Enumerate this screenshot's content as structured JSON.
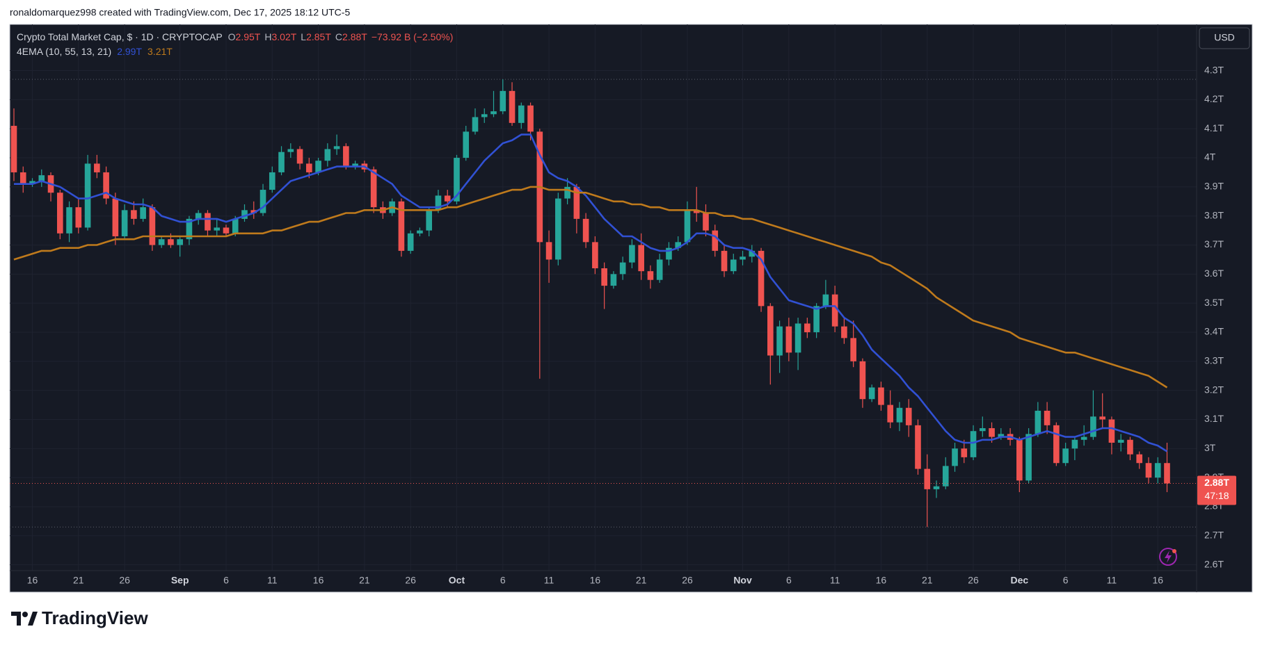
{
  "header": {
    "attribution": "ronaldomarquez998 created with TradingView.com, Dec 17, 2025 18:12 UTC-5",
    "symbol": "Crypto Total Market Cap, $ · 1D · CRYPTOCAP",
    "ohlc": [
      {
        "label": "O",
        "value": "2.95T"
      },
      {
        "label": "H",
        "value": "3.02T"
      },
      {
        "label": "L",
        "value": "2.85T"
      },
      {
        "label": "C",
        "value": "2.88T"
      }
    ],
    "change": "−73.92 B (−2.50%)",
    "indicator": "4EMA (10, 55, 13, 21)",
    "indicator_values": [
      "2.99T",
      "3.21T"
    ],
    "currency": "USD",
    "price_tag": "2.88T",
    "countdown": "47:18",
    "brand": "TradingView"
  },
  "chart_data": {
    "type": "candlestick",
    "categories": [
      null,
      null,
      "16",
      null,
      null,
      null,
      null,
      "21",
      null,
      null,
      null,
      null,
      "26",
      null,
      null,
      null,
      null,
      null,
      "Sep",
      null,
      null,
      null,
      null,
      "6",
      null,
      null,
      null,
      null,
      "11",
      null,
      null,
      null,
      null,
      "16",
      null,
      null,
      null,
      null,
      "21",
      null,
      null,
      null,
      null,
      "26",
      null,
      null,
      null,
      null,
      "Oct",
      null,
      null,
      null,
      null,
      "6",
      null,
      null,
      null,
      null,
      "11",
      null,
      null,
      null,
      null,
      "16",
      null,
      null,
      null,
      null,
      "21",
      null,
      null,
      null,
      null,
      "26",
      null,
      null,
      null,
      null,
      null,
      "Nov",
      null,
      null,
      null,
      null,
      "6",
      null,
      null,
      null,
      null,
      "11",
      null,
      null,
      null,
      null,
      "16",
      null,
      null,
      null,
      null,
      "21",
      null,
      null,
      null,
      null,
      "26",
      null,
      null,
      null,
      null,
      "Dec",
      null,
      null,
      null,
      null,
      "6",
      null,
      null,
      null,
      null,
      "11",
      null,
      null,
      null,
      null,
      "16",
      null
    ],
    "open": [
      4.11,
      3.95,
      3.91,
      3.92,
      3.94,
      3.88,
      3.74,
      3.83,
      3.76,
      3.98,
      3.95,
      3.86,
      3.73,
      3.82,
      3.79,
      3.83,
      3.7,
      3.72,
      3.7,
      3.72,
      3.79,
      3.81,
      3.75,
      3.76,
      3.74,
      3.79,
      3.82,
      3.81,
      3.89,
      3.95,
      4.02,
      4.03,
      3.98,
      3.95,
      3.99,
      4.03,
      4.04,
      3.97,
      3.98,
      3.96,
      3.83,
      3.81,
      3.85,
      3.68,
      3.74,
      3.75,
      3.82,
      3.87,
      3.85,
      4.0,
      4.09,
      4.14,
      4.15,
      4.16,
      4.23,
      4.12,
      4.18,
      4.09,
      3.71,
      3.65,
      3.86,
      3.9,
      3.79,
      3.71,
      3.62,
      3.56,
      3.6,
      3.64,
      3.7,
      3.61,
      3.58,
      3.65,
      3.69,
      3.71,
      3.82,
      3.81,
      3.75,
      3.68,
      3.61,
      3.65,
      3.66,
      3.68,
      3.49,
      3.32,
      3.42,
      3.33,
      3.43,
      3.4,
      3.49,
      3.53,
      3.42,
      3.38,
      3.3,
      3.17,
      3.21,
      3.15,
      3.09,
      3.14,
      3.08,
      2.93,
      2.86,
      2.87,
      2.94,
      3.0,
      2.97,
      3.06,
      3.07,
      3.04,
      3.05,
      3.03,
      2.89,
      3.05,
      3.13,
      3.08,
      2.95,
      3.0,
      3.03,
      3.04,
      3.11,
      3.1,
      3.02,
      3.03,
      2.98,
      2.95,
      2.9,
      2.95
    ],
    "high": [
      4.17,
      3.97,
      3.93,
      3.96,
      3.95,
      3.89,
      3.85,
      3.86,
      4.01,
      4.01,
      3.97,
      3.88,
      3.84,
      3.85,
      3.86,
      3.84,
      3.73,
      3.74,
      3.73,
      3.8,
      3.82,
      3.82,
      3.79,
      3.77,
      3.8,
      3.84,
      3.85,
      3.91,
      3.97,
      4.04,
      4.05,
      4.04,
      4.0,
      4.0,
      4.05,
      4.08,
      4.05,
      3.99,
      3.99,
      3.97,
      3.85,
      3.86,
      3.86,
      3.75,
      3.76,
      3.83,
      3.89,
      3.89,
      4.01,
      4.11,
      4.17,
      4.17,
      4.23,
      4.27,
      4.26,
      4.19,
      4.19,
      4.1,
      3.75,
      3.88,
      3.93,
      3.91,
      3.81,
      3.73,
      3.64,
      3.61,
      3.66,
      3.72,
      3.74,
      3.63,
      3.67,
      3.71,
      3.73,
      3.85,
      3.9,
      3.84,
      3.77,
      3.7,
      3.67,
      3.68,
      3.7,
      3.69,
      3.5,
      3.44,
      3.45,
      3.45,
      3.45,
      3.5,
      3.58,
      3.56,
      3.45,
      3.44,
      3.31,
      3.22,
      3.23,
      3.2,
      3.16,
      3.17,
      3.1,
      2.98,
      2.89,
      2.97,
      3.02,
      3.03,
      3.08,
      3.11,
      3.09,
      3.07,
      3.07,
      3.04,
      3.07,
      3.16,
      3.16,
      3.09,
      3.02,
      3.04,
      3.08,
      3.2,
      3.19,
      3.11,
      3.05,
      3.04,
      2.99,
      2.97,
      2.97,
      3.02
    ],
    "low": [
      3.92,
      3.88,
      3.9,
      3.9,
      3.85,
      3.72,
      3.71,
      3.74,
      3.75,
      3.93,
      3.84,
      3.7,
      3.72,
      3.77,
      3.78,
      3.68,
      3.69,
      3.69,
      3.66,
      3.7,
      3.77,
      3.73,
      3.73,
      3.73,
      3.73,
      3.78,
      3.79,
      3.8,
      3.88,
      3.94,
      4.0,
      3.96,
      3.93,
      3.94,
      3.97,
      4.01,
      3.96,
      3.96,
      3.95,
      3.81,
      3.79,
      3.8,
      3.66,
      3.67,
      3.73,
      3.73,
      3.81,
      3.83,
      3.84,
      3.99,
      4.08,
      4.12,
      4.14,
      4.15,
      4.11,
      4.1,
      4.06,
      3.24,
      3.57,
      3.63,
      3.84,
      3.74,
      3.69,
      3.6,
      3.48,
      3.55,
      3.58,
      3.62,
      3.58,
      3.55,
      3.57,
      3.63,
      3.68,
      3.7,
      3.78,
      3.73,
      3.66,
      3.59,
      3.6,
      3.63,
      3.64,
      3.47,
      3.22,
      3.26,
      3.3,
      3.27,
      3.38,
      3.38,
      3.48,
      3.4,
      3.36,
      3.28,
      3.14,
      3.16,
      3.13,
      3.07,
      3.06,
      3.04,
      2.91,
      2.73,
      2.83,
      2.86,
      2.92,
      2.95,
      2.96,
      3.04,
      3.02,
      3.03,
      3.01,
      2.85,
      2.88,
      3.04,
      3.05,
      2.94,
      2.94,
      2.96,
      3.01,
      3.03,
      3.07,
      2.98,
      2.99,
      2.96,
      2.93,
      2.88,
      2.88,
      2.85
    ],
    "close": [
      3.95,
      3.91,
      3.92,
      3.94,
      3.88,
      3.74,
      3.83,
      3.76,
      3.98,
      3.95,
      3.86,
      3.73,
      3.82,
      3.79,
      3.83,
      3.7,
      3.72,
      3.7,
      3.72,
      3.79,
      3.81,
      3.75,
      3.76,
      3.74,
      3.79,
      3.82,
      3.81,
      3.89,
      3.95,
      4.02,
      4.03,
      3.98,
      3.95,
      3.99,
      4.03,
      4.04,
      3.97,
      3.98,
      3.96,
      3.83,
      3.81,
      3.85,
      3.68,
      3.74,
      3.75,
      3.82,
      3.87,
      3.85,
      4.0,
      4.09,
      4.14,
      4.15,
      4.16,
      4.23,
      4.12,
      4.18,
      4.09,
      3.71,
      3.65,
      3.86,
      3.9,
      3.79,
      3.71,
      3.62,
      3.56,
      3.6,
      3.64,
      3.7,
      3.61,
      3.58,
      3.65,
      3.69,
      3.71,
      3.82,
      3.81,
      3.75,
      3.68,
      3.61,
      3.65,
      3.66,
      3.68,
      3.49,
      3.32,
      3.42,
      3.33,
      3.43,
      3.4,
      3.49,
      3.53,
      3.42,
      3.38,
      3.3,
      3.17,
      3.21,
      3.15,
      3.09,
      3.14,
      3.08,
      2.93,
      2.86,
      2.87,
      2.94,
      3.0,
      2.97,
      3.06,
      3.07,
      3.04,
      3.05,
      3.03,
      2.89,
      3.05,
      3.13,
      3.08,
      2.95,
      3.0,
      3.03,
      3.04,
      3.11,
      3.1,
      3.02,
      3.03,
      2.98,
      2.95,
      2.9,
      2.95,
      2.88
    ],
    "up_color": "#26a69a",
    "down_color": "#ef5350",
    "series": [
      {
        "color": "#3151d4",
        "values": [
          3.91,
          3.91,
          3.91,
          3.92,
          3.91,
          3.9,
          3.88,
          3.86,
          3.86,
          3.87,
          3.88,
          3.86,
          3.85,
          3.84,
          3.84,
          3.83,
          3.8,
          3.79,
          3.78,
          3.78,
          3.79,
          3.79,
          3.79,
          3.78,
          3.79,
          3.8,
          3.81,
          3.83,
          3.86,
          3.89,
          3.92,
          3.93,
          3.94,
          3.95,
          3.96,
          3.97,
          3.97,
          3.97,
          3.97,
          3.95,
          3.93,
          3.91,
          3.87,
          3.85,
          3.83,
          3.83,
          3.83,
          3.84,
          3.87,
          3.91,
          3.95,
          3.99,
          4.02,
          4.05,
          4.06,
          4.08,
          4.08,
          4.01,
          3.95,
          3.93,
          3.92,
          3.9,
          3.87,
          3.83,
          3.79,
          3.76,
          3.73,
          3.73,
          3.71,
          3.69,
          3.68,
          3.68,
          3.69,
          3.71,
          3.74,
          3.74,
          3.73,
          3.7,
          3.69,
          3.69,
          3.68,
          3.65,
          3.59,
          3.55,
          3.51,
          3.5,
          3.49,
          3.48,
          3.49,
          3.49,
          3.45,
          3.43,
          3.39,
          3.34,
          3.31,
          3.28,
          3.25,
          3.21,
          3.18,
          3.14,
          3.1,
          3.06,
          3.03,
          3.02,
          3.02,
          3.03,
          3.03,
          3.04,
          3.04,
          3.03,
          3.04,
          3.05,
          3.06,
          3.05,
          3.04,
          3.04,
          3.05,
          3.06,
          3.07,
          3.07,
          3.06,
          3.05,
          3.04,
          3.02,
          3.01,
          2.99
        ]
      },
      {
        "color": "#bf7a1c",
        "values": [
          3.65,
          3.66,
          3.67,
          3.68,
          3.68,
          3.69,
          3.69,
          3.69,
          3.7,
          3.7,
          3.71,
          3.72,
          3.72,
          3.72,
          3.73,
          3.73,
          3.73,
          3.73,
          3.73,
          3.73,
          3.73,
          3.73,
          3.73,
          3.73,
          3.74,
          3.74,
          3.74,
          3.74,
          3.75,
          3.75,
          3.76,
          3.77,
          3.78,
          3.78,
          3.79,
          3.8,
          3.81,
          3.81,
          3.82,
          3.82,
          3.82,
          3.83,
          3.82,
          3.82,
          3.82,
          3.82,
          3.82,
          3.83,
          3.83,
          3.84,
          3.85,
          3.86,
          3.87,
          3.88,
          3.89,
          3.89,
          3.9,
          3.9,
          3.89,
          3.89,
          3.89,
          3.88,
          3.88,
          3.87,
          3.86,
          3.85,
          3.85,
          3.84,
          3.84,
          3.83,
          3.83,
          3.82,
          3.82,
          3.82,
          3.82,
          3.81,
          3.81,
          3.8,
          3.8,
          3.79,
          3.79,
          3.78,
          3.77,
          3.76,
          3.75,
          3.74,
          3.73,
          3.72,
          3.71,
          3.7,
          3.69,
          3.68,
          3.67,
          3.66,
          3.64,
          3.63,
          3.61,
          3.59,
          3.57,
          3.55,
          3.52,
          3.5,
          3.48,
          3.46,
          3.44,
          3.43,
          3.42,
          3.41,
          3.4,
          3.38,
          3.37,
          3.36,
          3.35,
          3.34,
          3.33,
          3.33,
          3.32,
          3.31,
          3.3,
          3.29,
          3.28,
          3.27,
          3.26,
          3.25,
          3.23,
          3.21
        ]
      }
    ],
    "ylim": [
      2.58,
      4.44
    ],
    "yticks": [
      {
        "value": 2.6,
        "label": "2.6T"
      },
      {
        "value": 2.7,
        "label": "2.7T"
      },
      {
        "value": 2.8,
        "label": "2.8T"
      },
      {
        "value": 2.9,
        "label": "2.9T"
      },
      {
        "value": 3.0,
        "label": "3T"
      },
      {
        "value": 3.1,
        "label": "3.1T"
      },
      {
        "value": 3.2,
        "label": "3.2T"
      },
      {
        "value": 3.3,
        "label": "3.3T"
      },
      {
        "value": 3.4,
        "label": "3.4T"
      },
      {
        "value": 3.5,
        "label": "3.5T"
      },
      {
        "value": 3.6,
        "label": "3.6T"
      },
      {
        "value": 3.7,
        "label": "3.7T"
      },
      {
        "value": 3.8,
        "label": "3.8T"
      },
      {
        "value": 3.9,
        "label": "3.9T"
      },
      {
        "value": 4.0,
        "label": "4T"
      },
      {
        "value": 4.1,
        "label": "4.1T"
      },
      {
        "value": 4.2,
        "label": "4.2T"
      },
      {
        "value": 4.3,
        "label": "4.3T"
      }
    ],
    "grid": true
  }
}
